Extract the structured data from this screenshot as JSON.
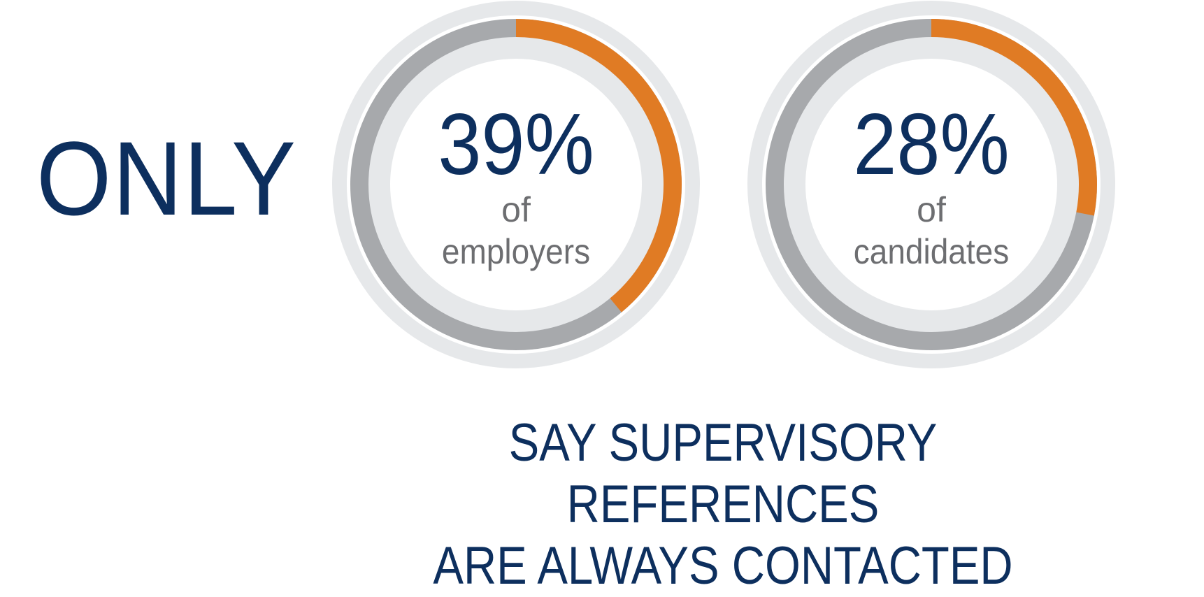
{
  "chart_data": {
    "type": "pie",
    "style": "donut",
    "colors": {
      "highlight": "#e07b24",
      "remainder": "#a7a9ac",
      "track": "#e6e8ea",
      "value_text": "#0d2f5e",
      "label_text": "#6d6e71"
    },
    "items": [
      {
        "value": 39,
        "value_label": "39%",
        "of": "of",
        "label": "employers"
      },
      {
        "value": 28,
        "value_label": "28%",
        "of": "of",
        "label": "candidates"
      }
    ]
  },
  "header": "ONLY",
  "caption": [
    "SAY SUPERVISORY REFERENCES",
    "ARE ALWAYS CONTACTED"
  ]
}
